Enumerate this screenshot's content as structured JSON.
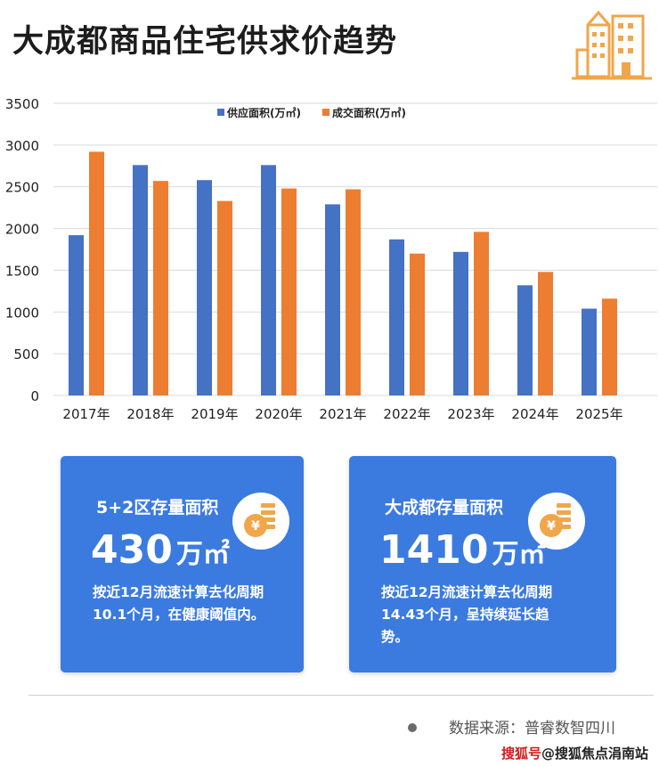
{
  "title": "大成都商品住宅供求价趋势",
  "colors": {
    "supply": "#4472c4",
    "deal": "#ed7d31",
    "card_bg": "#3b7be0",
    "icon_orange": "#f0a64a"
  },
  "chart_data": {
    "type": "bar",
    "title": "",
    "xlabel": "",
    "ylabel": "",
    "categories": [
      "2017年",
      "2018年",
      "2019年",
      "2020年",
      "2021年",
      "2022年",
      "2023年",
      "2024年",
      "2025年"
    ],
    "series": [
      {
        "name": "供应面积(万㎡)",
        "values": [
          1920,
          2760,
          2580,
          2760,
          2290,
          1870,
          1720,
          1320,
          1040
        ]
      },
      {
        "name": "成交面积(万㎡)",
        "values": [
          2920,
          2570,
          2330,
          2480,
          2470,
          1700,
          1960,
          1480,
          1160
        ]
      }
    ],
    "ylim": [
      0,
      3500
    ],
    "yticks": [
      0,
      500,
      1000,
      1500,
      2000,
      2500,
      3000,
      3500
    ],
    "grid": true,
    "legend_position": "top-center"
  },
  "cards": [
    {
      "title": "5+2区存量面积",
      "value": "430",
      "unit": "万㎡",
      "icon": "yuan-coin-icon",
      "description": "按近12月流速计算去化周期10.1个月，在健康阈值内。"
    },
    {
      "title": "大成都存量面积",
      "value": "1410",
      "unit": "万㎡",
      "icon": "yuan-coin-icon",
      "description": "按近12月流速计算去化周期14.43个月，呈持续延长趋势。"
    }
  ],
  "footer": {
    "source": "数据来源：普睿数智四川",
    "watermark_mark": "搜狐号",
    "watermark_text": "@搜狐焦点涓南站"
  }
}
